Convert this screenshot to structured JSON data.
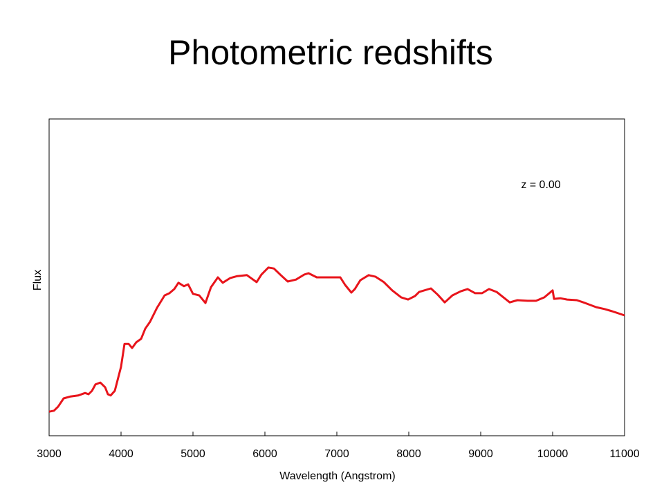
{
  "chart_data": {
    "type": "line",
    "title": "Photometric redshifts",
    "xlabel": "Wavelength (Angstrom)",
    "ylabel": "Flux",
    "annotation": "z = 0.00",
    "xlim": [
      3000,
      11000
    ],
    "xticks": [
      3000,
      4000,
      5000,
      6000,
      7000,
      8000,
      9000,
      10000,
      11000
    ],
    "ylim": [
      0,
      100
    ],
    "x": [
      3000,
      3067,
      3125,
      3202,
      3298,
      3404,
      3500,
      3548,
      3596,
      3644,
      3712,
      3779,
      3817,
      3856,
      3913,
      4000,
      4048,
      4106,
      4154,
      4212,
      4279,
      4337,
      4404,
      4500,
      4606,
      4673,
      4740,
      4798,
      4875,
      4933,
      5000,
      5087,
      5173,
      5250,
      5346,
      5413,
      5519,
      5615,
      5750,
      5885,
      5952,
      6048,
      6125,
      6221,
      6317,
      6433,
      6548,
      6606,
      6721,
      6885,
      7048,
      7115,
      7202,
      7250,
      7327,
      7442,
      7538,
      7654,
      7769,
      7894,
      7990,
      8087,
      8144,
      8308,
      8404,
      8500,
      8606,
      8721,
      8817,
      8923,
      9019,
      9115,
      9221,
      9404,
      9510,
      9654,
      9769,
      9885,
      10000,
      10019,
      10106,
      10202,
      10337,
      10452,
      10606,
      10721,
      10827,
      11000
    ],
    "series": [
      {
        "name": "z = 0.00",
        "color": "#e8141b",
        "values": [
          7.6,
          7.9,
          9.2,
          11.8,
          12.4,
          12.7,
          13.5,
          13.1,
          14.2,
          16.2,
          16.8,
          15.3,
          13.1,
          12.7,
          14.2,
          21.8,
          29.0,
          29.0,
          27.7,
          29.5,
          30.6,
          33.8,
          36.0,
          40.4,
          44.3,
          45.0,
          46.3,
          48.3,
          47.2,
          47.8,
          44.8,
          44.3,
          41.9,
          46.9,
          50.0,
          48.3,
          49.8,
          50.4,
          50.7,
          48.5,
          50.9,
          53.1,
          52.8,
          50.7,
          48.7,
          49.3,
          50.9,
          51.3,
          50.0,
          50.0,
          50.0,
          47.6,
          45.2,
          46.3,
          49.1,
          50.7,
          50.2,
          48.5,
          45.9,
          43.7,
          43.0,
          44.1,
          45.4,
          46.5,
          44.5,
          42.1,
          44.3,
          45.6,
          46.3,
          45.0,
          45.0,
          46.3,
          45.4,
          42.1,
          42.8,
          42.6,
          42.6,
          43.7,
          45.9,
          43.2,
          43.4,
          43.0,
          42.8,
          41.9,
          40.6,
          40.0,
          39.3,
          38.0
        ]
      }
    ]
  }
}
